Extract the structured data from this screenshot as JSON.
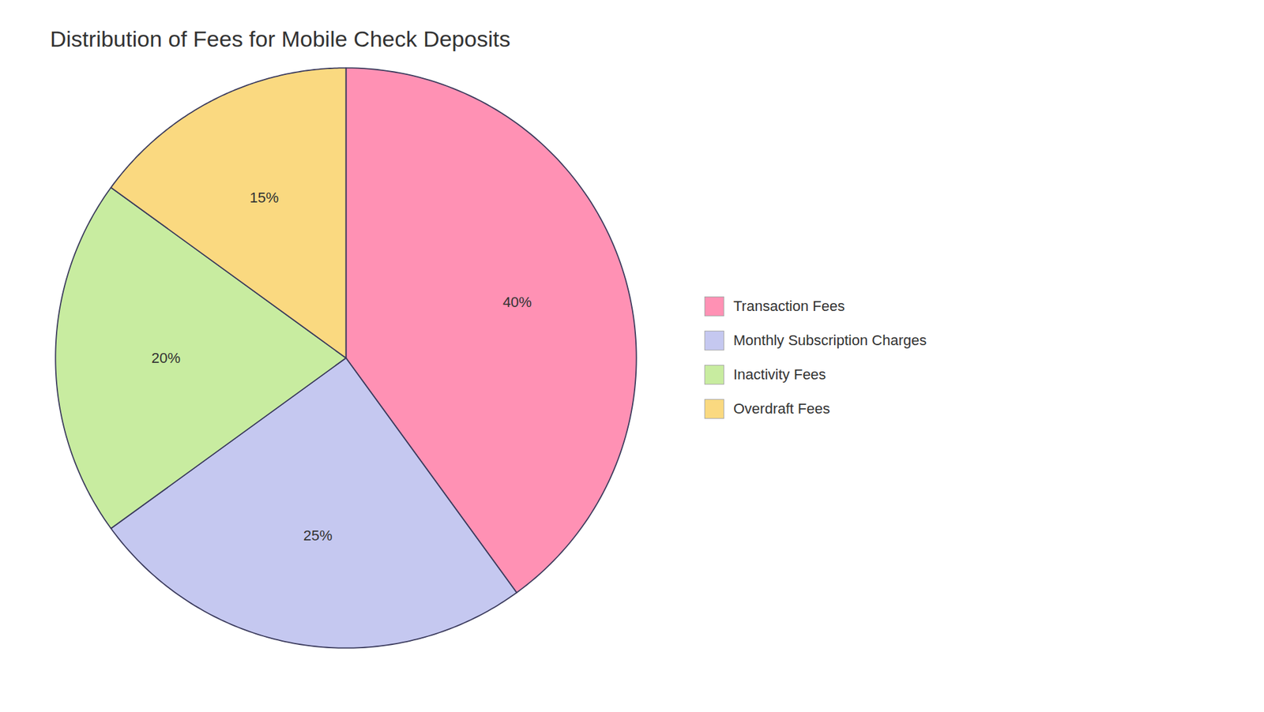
{
  "chart_data": {
    "type": "pie",
    "title": "Distribution of Fees for Mobile Check Deposits",
    "categories": [
      "Transaction Fees",
      "Monthly Subscription Charges",
      "Inactivity Fees",
      "Overdraft Fees"
    ],
    "values": [
      40,
      25,
      20,
      15
    ],
    "value_labels": [
      "40%",
      "25%",
      "20%",
      "15%"
    ],
    "colors": [
      "#FF91B4",
      "#C5C8F0",
      "#C8ECA0",
      "#FAD980"
    ],
    "data_labels": true,
    "legend": "right"
  }
}
